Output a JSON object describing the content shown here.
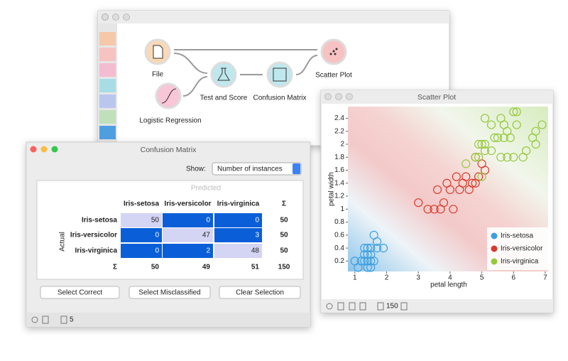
{
  "canvas": {
    "nodes": [
      {
        "label": "File"
      },
      {
        "label": "Logistic Regression"
      },
      {
        "label": "Test and Score"
      },
      {
        "label": "Confusion Matrix"
      },
      {
        "label": "Scatter Plot"
      }
    ]
  },
  "confusion_matrix": {
    "title": "Confusion Matrix",
    "show_label": "Show:",
    "show_value": "Number of instances",
    "predicted_label": "Predicted",
    "actual_label": "Actual",
    "columns": [
      "Iris-setosa",
      "Iris-versicolor",
      "Iris-virginica",
      "Σ"
    ],
    "rows": [
      {
        "label": "Iris-setosa",
        "values": [
          50,
          0,
          0
        ],
        "total": 50
      },
      {
        "label": "Iris-versicolor",
        "values": [
          0,
          47,
          3
        ],
        "total": 50
      },
      {
        "label": "Iris-virginica",
        "values": [
          0,
          2,
          48
        ],
        "total": 50
      }
    ],
    "totals": {
      "label": "Σ",
      "values": [
        50,
        49,
        51
      ],
      "total": 150
    },
    "buttons": [
      "Select Correct",
      "Select Misclassified",
      "Clear Selection"
    ],
    "status": "5"
  },
  "scatter_plot": {
    "title": "Scatter Plot",
    "status": "150",
    "chart": {
      "type": "scatter",
      "xlabel": "petal length",
      "ylabel": "petal width",
      "xlim": [
        0.78,
        7.09
      ],
      "ylim": [
        0.04,
        2.58
      ],
      "xticks": [
        1,
        2,
        3,
        4,
        5,
        6,
        7
      ],
      "yticks": [
        0.2,
        0.4,
        0.6,
        0.8,
        1,
        1.2,
        1.4,
        1.6,
        1.8,
        2,
        2.2,
        2.4
      ],
      "legend": "bottom-right",
      "series": [
        {
          "name": "Iris-setosa",
          "color": "#3d9fe0",
          "x": [
            1.4,
            1.3,
            1.5,
            1.7,
            1.4,
            1.5,
            1.6,
            1.1,
            1.2,
            1.3,
            1.9,
            1.0,
            1.6,
            1.4,
            1.5,
            1.2,
            1.3,
            1.5,
            1.7,
            1.4
          ],
          "y": [
            0.2,
            0.2,
            0.2,
            0.4,
            0.3,
            0.1,
            0.2,
            0.1,
            0.2,
            0.4,
            0.4,
            0.2,
            0.6,
            0.1,
            0.4,
            0.2,
            0.3,
            0.3,
            0.5,
            0.4
          ]
        },
        {
          "name": "Iris-versicolor",
          "color": "#d93a2b",
          "x": [
            4.7,
            4.5,
            4.9,
            4.0,
            4.6,
            3.3,
            3.9,
            3.5,
            4.2,
            3.6,
            4.4,
            4.1,
            4.8,
            5.0,
            3.8,
            3.7,
            5.1,
            4.3,
            3.0,
            4.8
          ],
          "y": [
            1.4,
            1.5,
            1.5,
            1.3,
            1.3,
            1.0,
            1.4,
            1.0,
            1.5,
            1.3,
            1.4,
            1.0,
            1.8,
            1.7,
            1.1,
            1.0,
            1.6,
            1.3,
            1.1,
            1.4
          ]
        },
        {
          "name": "Iris-virginica",
          "color": "#95c83a",
          "x": [
            6.0,
            5.1,
            5.9,
            5.6,
            5.8,
            6.6,
            4.5,
            6.3,
            5.8,
            6.1,
            5.1,
            5.3,
            5.5,
            5.0,
            5.1,
            5.3,
            6.7,
            6.9,
            5.0,
            5.7,
            4.9,
            6.7,
            4.9,
            5.7,
            6.0,
            4.8,
            5.4,
            5.6,
            6.1,
            6.4
          ],
          "y": [
            2.5,
            1.9,
            2.1,
            1.8,
            2.2,
            2.1,
            1.7,
            1.8,
            1.8,
            2.5,
            2.0,
            1.9,
            2.1,
            2.0,
            2.4,
            2.3,
            2.2,
            2.3,
            1.5,
            2.3,
            2.0,
            2.0,
            1.8,
            2.1,
            1.8,
            1.8,
            2.1,
            2.4,
            2.3,
            1.9
          ]
        }
      ]
    }
  }
}
